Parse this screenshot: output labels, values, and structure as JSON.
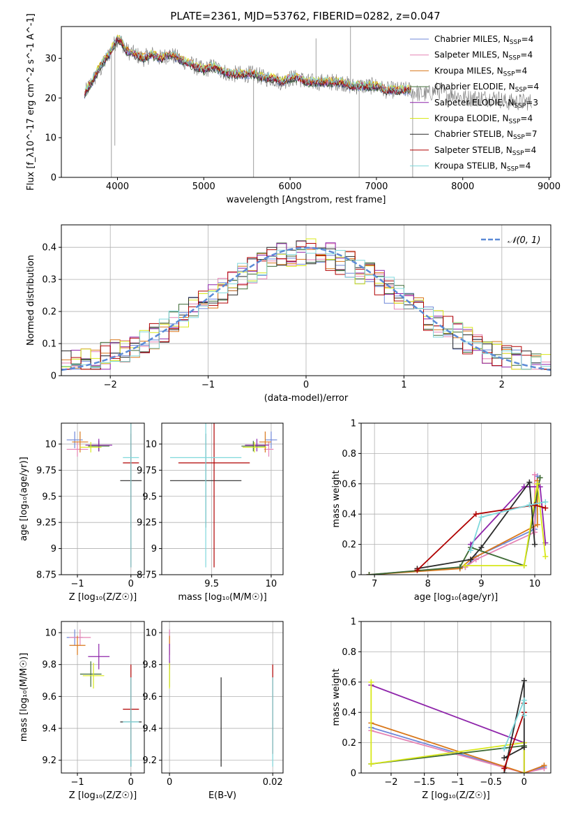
{
  "figure": {
    "title": "PLATE=2361, MJD=53762, FIBERID=0282, z=0.047"
  },
  "series_styles": [
    {
      "name": "Chabrier MILES",
      "color": "#6f87d8"
    },
    {
      "name": "Salpeter MILES",
      "color": "#e583b4"
    },
    {
      "name": "Kroupa MILES",
      "color": "#d9771a"
    },
    {
      "name": "Chabrier ELODIE",
      "color": "#3f6b36"
    },
    {
      "name": "Salpeter ELODIE",
      "color": "#8e24aa"
    },
    {
      "name": "Kroupa ELODIE",
      "color": "#d8e81a"
    },
    {
      "name": "Chabrier STELIB",
      "color": "#2a2a2a"
    },
    {
      "name": "Salpeter STELIB",
      "color": "#b00000"
    },
    {
      "name": "Kroupa STELIB",
      "color": "#7fd8dc"
    }
  ],
  "chart_data": [
    {
      "id": "spectrum",
      "type": "line",
      "xlabel": "wavelength [Angstrom, rest frame]",
      "ylabel": "Flux [f_λ10^-17 erg cm^-2 s^-1 A^-1]",
      "xlim": [
        3350,
        9020
      ],
      "ylim": [
        0,
        38
      ],
      "xticks": [
        4000,
        5000,
        6000,
        7000,
        8000,
        9000
      ],
      "yticks": [
        0,
        10,
        20,
        30
      ],
      "legend_position": "upper-right",
      "legend": [
        {
          "label": "Chabrier MILES, N",
          "sub": "SSP",
          "suffix": "=4"
        },
        {
          "label": "Salpeter MILES, N",
          "sub": "SSP",
          "suffix": "=4"
        },
        {
          "label": "Kroupa MILES, N",
          "sub": "SSP",
          "suffix": "=4"
        },
        {
          "label": "Chabrier ELODIE, N",
          "sub": "SSP",
          "suffix": "=4"
        },
        {
          "label": "Salpeter ELODIE, N",
          "sub": "SSP",
          "suffix": "=3"
        },
        {
          "label": "Kroupa ELODIE, N",
          "sub": "SSP",
          "suffix": "=4"
        },
        {
          "label": "Chabrier STELIB, N",
          "sub": "SSP",
          "suffix": "=7"
        },
        {
          "label": "Salpeter STELIB, N",
          "sub": "SSP",
          "suffix": "=4"
        },
        {
          "label": "Kroupa STELIB, N",
          "sub": "SSP",
          "suffix": "=4"
        }
      ],
      "data_spectrum": {
        "x": [
          3620,
          3700,
          3800,
          3900,
          3950,
          4000,
          4050,
          4100,
          4200,
          4300,
          4400,
          4500,
          4600,
          4700,
          4800,
          4900,
          5000,
          5100,
          5200,
          5300,
          5400,
          5500,
          5600,
          5700,
          5800,
          5900,
          6000,
          6100,
          6200,
          6300,
          6400,
          6500,
          6600,
          6700,
          6800,
          6900,
          7000,
          7100,
          7200,
          7300,
          7400,
          7500,
          7600,
          7700,
          7800,
          7900,
          8000,
          8100,
          8200,
          8300,
          8400,
          8500,
          8600,
          8700,
          8800
        ],
        "y": [
          21,
          24,
          27,
          31,
          33,
          35,
          34,
          32,
          31,
          30,
          31,
          30,
          31,
          30,
          29,
          28,
          27,
          28,
          27,
          26,
          26,
          26,
          26,
          25,
          25,
          24,
          25,
          25,
          24,
          24,
          24,
          24,
          24,
          23,
          23,
          23,
          23,
          22,
          22,
          22,
          22,
          21,
          21,
          22,
          21,
          21,
          20,
          20,
          20,
          20,
          20,
          19,
          19,
          19,
          19
        ]
      },
      "data_model": {
        "x": [
          3620,
          3700,
          3800,
          3900,
          3950,
          4000,
          4050,
          4100,
          4200,
          4300,
          4400,
          4500,
          4600,
          4700,
          4800,
          4900,
          5000,
          5100,
          5200,
          5300,
          5400,
          5500,
          5600,
          5700,
          5800,
          5900,
          6000,
          6100,
          6200,
          6300,
          6400,
          6500,
          6600,
          6700,
          6800,
          6900,
          7000,
          7100,
          7200,
          7300,
          7400
        ],
        "y": [
          21,
          24,
          28,
          31,
          33,
          35,
          34,
          32,
          31,
          30,
          31,
          30,
          31,
          30,
          29,
          28,
          27,
          28,
          27,
          26,
          26,
          26,
          26,
          25,
          25,
          24,
          25,
          25,
          24,
          24,
          24,
          24,
          24,
          23,
          23,
          23,
          23,
          22,
          22,
          22,
          22
        ]
      }
    },
    {
      "id": "residuals",
      "type": "histogram",
      "xlabel": "(data-model)/error",
      "ylabel": "Normed distribution",
      "xlim": [
        -2.5,
        2.5
      ],
      "ylim": [
        0,
        0.47
      ],
      "xticks": [
        -2,
        -1,
        0,
        1,
        2
      ],
      "yticks": [
        0.0,
        0.1,
        0.2,
        0.3,
        0.4
      ],
      "legend_position": "upper-right",
      "legend_label": "𝒩(0, 1)",
      "gaussian": {
        "mean": 0,
        "sigma": 1
      },
      "bin_width": 0.1
    },
    {
      "id": "Z-age",
      "type": "scatter",
      "xlabel": "Z [log₁₀(Z/Z☉)]",
      "ylabel": "age  [log₁₀(age/yr)]",
      "xlim": [
        -1.3,
        0.25
      ],
      "ylim": [
        8.75,
        10.2
      ],
      "xticks": [
        -1,
        0
      ],
      "yticks": [
        8.75,
        9.0,
        9.25,
        9.5,
        9.75,
        10.0
      ],
      "points": [
        {
          "s": 0,
          "x": -1.05,
          "y": 10.04,
          "xe": 0.15,
          "ye": 0.08
        },
        {
          "s": 1,
          "x": -1.0,
          "y": 9.95,
          "xe": 0.2,
          "ye": 0.07
        },
        {
          "s": 2,
          "x": -0.95,
          "y": 10.02,
          "xe": 0.15,
          "ye": 0.1
        },
        {
          "s": 3,
          "x": -0.6,
          "y": 9.98,
          "xe": 0.2,
          "ye": 0.05
        },
        {
          "s": 4,
          "x": -0.6,
          "y": 9.99,
          "xe": 0.25,
          "ye": 0.06
        },
        {
          "s": 5,
          "x": -0.75,
          "y": 9.97,
          "xe": 0.2,
          "ye": 0.05
        },
        {
          "s": 6,
          "x": 0.0,
          "y": 9.65,
          "xe": 0.2,
          "ye": 0.45
        },
        {
          "s": 7,
          "x": 0.0,
          "y": 9.82,
          "xe": 0.15,
          "ye": 1.0
        },
        {
          "s": 8,
          "x": 0.0,
          "y": 9.87,
          "xe": 0.15,
          "ye": 1.05
        }
      ]
    },
    {
      "id": "mass-age",
      "type": "scatter",
      "xlabel": "mass [log₁₀(M/M☉)]",
      "ylabel": "",
      "xlim": [
        9.08,
        10.1
      ],
      "ylim": [
        8.75,
        10.2
      ],
      "xticks": [
        9.5,
        10.0
      ],
      "yticks": [
        8.75,
        9.0,
        9.25,
        9.5,
        9.75,
        10.0
      ],
      "points": [
        {
          "s": 0,
          "x": 10.0,
          "y": 10.04,
          "xe": 0.05,
          "ye": 0.08
        },
        {
          "s": 1,
          "x": 9.98,
          "y": 9.95,
          "xe": 0.04,
          "ye": 0.07
        },
        {
          "s": 2,
          "x": 9.95,
          "y": 10.02,
          "xe": 0.05,
          "ye": 0.1
        },
        {
          "s": 3,
          "x": 9.85,
          "y": 9.98,
          "xe": 0.1,
          "ye": 0.05
        },
        {
          "s": 4,
          "x": 9.88,
          "y": 9.99,
          "xe": 0.1,
          "ye": 0.06
        },
        {
          "s": 5,
          "x": 9.86,
          "y": 9.97,
          "xe": 0.1,
          "ye": 0.05
        },
        {
          "s": 6,
          "x": 9.45,
          "y": 9.65,
          "xe": 0.3,
          "ye": 0.45
        },
        {
          "s": 7,
          "x": 9.52,
          "y": 9.82,
          "xe": 0.3,
          "ye": 1.0
        },
        {
          "s": 8,
          "x": 9.45,
          "y": 9.87,
          "xe": 0.3,
          "ye": 1.05
        }
      ]
    },
    {
      "id": "age-weight",
      "type": "line",
      "xlabel": "age  [log₁₀(age/yr)]",
      "ylabel": "mass weight",
      "xlim": [
        6.75,
        10.3
      ],
      "ylim": [
        0,
        1.0
      ],
      "xticks": [
        7,
        8,
        9,
        10
      ],
      "yticks": [
        0.0,
        0.2,
        0.4,
        0.6,
        0.8,
        1.0
      ],
      "series": [
        {
          "s": 0,
          "x": [
            6.9,
            8.7,
            8.9,
            10.0,
            10.05
          ],
          "y": [
            0.0,
            0.05,
            0.12,
            0.3,
            0.65
          ]
        },
        {
          "s": 1,
          "x": [
            6.9,
            8.7,
            8.9,
            10.0,
            10.0
          ],
          "y": [
            0.0,
            0.05,
            0.1,
            0.28,
            0.66
          ]
        },
        {
          "s": 2,
          "x": [
            6.9,
            8.6,
            8.8,
            10.05,
            10.05
          ],
          "y": [
            0.0,
            0.04,
            0.1,
            0.33,
            0.62
          ]
        },
        {
          "s": 3,
          "x": [
            6.9,
            8.6,
            8.8,
            9.8,
            10.1
          ],
          "y": [
            0.0,
            0.05,
            0.18,
            0.06,
            0.64
          ]
        },
        {
          "s": 4,
          "x": [
            8.8,
            9.8,
            10.1,
            10.2
          ],
          "y": [
            0.2,
            0.58,
            0.58,
            0.21
          ]
        },
        {
          "s": 5,
          "x": [
            8.7,
            9.8,
            10.05,
            10.2
          ],
          "y": [
            0.06,
            0.06,
            0.6,
            0.12
          ]
        },
        {
          "s": 6,
          "x": [
            7.8,
            8.8,
            9.0,
            9.9,
            10.0
          ],
          "y": [
            0.04,
            0.1,
            0.18,
            0.61,
            0.2
          ]
        },
        {
          "s": 7,
          "x": [
            7.8,
            8.9,
            10.0,
            10.2
          ],
          "y": [
            0.03,
            0.4,
            0.46,
            0.44
          ]
        },
        {
          "s": 8,
          "x": [
            8.8,
            9.0,
            9.9,
            10.2
          ],
          "y": [
            0.16,
            0.38,
            0.46,
            0.48
          ]
        }
      ]
    },
    {
      "id": "Z-mass",
      "type": "scatter",
      "xlabel": "Z [log₁₀(Z/Z☉)]",
      "ylabel": "mass [log₁₀(M/M☉)]",
      "xlim": [
        -1.3,
        0.25
      ],
      "ylim": [
        9.12,
        10.07
      ],
      "xticks": [
        -1,
        0
      ],
      "yticks": [
        9.2,
        9.4,
        9.6,
        9.8,
        10.0
      ],
      "points": [
        {
          "s": 0,
          "x": -1.05,
          "y": 9.97,
          "xe": 0.15,
          "ye": 0.05
        },
        {
          "s": 1,
          "x": -0.95,
          "y": 9.97,
          "xe": 0.2,
          "ye": 0.05
        },
        {
          "s": 2,
          "x": -1.0,
          "y": 9.92,
          "xe": 0.15,
          "ye": 0.06
        },
        {
          "s": 3,
          "x": -0.75,
          "y": 9.74,
          "xe": 0.2,
          "ye": 0.08
        },
        {
          "s": 4,
          "x": -0.6,
          "y": 9.85,
          "xe": 0.2,
          "ye": 0.08
        },
        {
          "s": 5,
          "x": -0.7,
          "y": 9.73,
          "xe": 0.2,
          "ye": 0.08
        },
        {
          "s": 6,
          "x": 0.0,
          "y": 9.44,
          "xe": 0.2,
          "ye": 0.28
        },
        {
          "s": 7,
          "x": 0.0,
          "y": 9.52,
          "xe": 0.15,
          "ye": 0.28
        },
        {
          "s": 8,
          "x": 0.0,
          "y": 9.44,
          "xe": 0.15,
          "ye": 0.28
        }
      ]
    },
    {
      "id": "ebv-mass",
      "type": "scatter",
      "xlabel": "E(B-V)",
      "ylabel": "",
      "xlim": [
        -0.0015,
        0.022
      ],
      "ylim": [
        9.12,
        10.07
      ],
      "xticks": [
        0.0,
        0.02
      ],
      "yticks": [
        9.2,
        9.4,
        9.6,
        9.8,
        10.0
      ],
      "points": [
        {
          "s": 0,
          "x": 0.0,
          "y": 9.97,
          "xe": 0,
          "ye": 0.05
        },
        {
          "s": 1,
          "x": 0.0,
          "y": 9.97,
          "xe": 0,
          "ye": 0.05
        },
        {
          "s": 2,
          "x": 0.0,
          "y": 9.92,
          "xe": 0,
          "ye": 0.06
        },
        {
          "s": 3,
          "x": 0.0,
          "y": 9.74,
          "xe": 0,
          "ye": 0.08
        },
        {
          "s": 4,
          "x": 0.0,
          "y": 9.85,
          "xe": 0,
          "ye": 0.08
        },
        {
          "s": 5,
          "x": 0.0,
          "y": 9.73,
          "xe": 0,
          "ye": 0.08
        },
        {
          "s": 6,
          "x": 0.01,
          "y": 9.44,
          "xe": 0,
          "ye": 0.28
        },
        {
          "s": 7,
          "x": 0.02,
          "y": 9.52,
          "xe": 0,
          "ye": 0.28
        },
        {
          "s": 8,
          "x": 0.02,
          "y": 9.44,
          "xe": 0,
          "ye": 0.28
        }
      ]
    },
    {
      "id": "Z-weight",
      "type": "line",
      "xlabel": "Z [log₁₀(Z/Z☉)]",
      "ylabel": "mass weight",
      "xlim": [
        -2.45,
        0.4
      ],
      "ylim": [
        0,
        1.0
      ],
      "xticks": [
        -2.0,
        -1.5,
        -1.0,
        -0.5,
        0.0
      ],
      "yticks": [
        0.0,
        0.2,
        0.4,
        0.6,
        0.8,
        1.0
      ],
      "series": [
        {
          "s": 0,
          "x": [
            -2.3,
            0.0,
            0.3
          ],
          "y": [
            0.3,
            0.0,
            0.04
          ]
        },
        {
          "s": 1,
          "x": [
            -2.3,
            0.0,
            0.3
          ],
          "y": [
            0.28,
            0.0,
            0.03
          ]
        },
        {
          "s": 2,
          "x": [
            -2.3,
            0.0,
            0.3
          ],
          "y": [
            0.33,
            0.0,
            0.05
          ]
        },
        {
          "s": 3,
          "x": [
            -2.3,
            0.0,
            0.0
          ],
          "y": [
            0.06,
            0.18,
            0.0
          ]
        },
        {
          "s": 4,
          "x": [
            -2.3,
            0.0,
            0.0
          ],
          "y": [
            0.58,
            0.2,
            0.0
          ]
        },
        {
          "s": 5,
          "x": [
            -2.3,
            -2.3,
            0.0,
            0.0
          ],
          "y": [
            0.6,
            0.06,
            0.2,
            0.0
          ]
        },
        {
          "s": 6,
          "x": [
            -0.3,
            0.0,
            0.0,
            -0.3
          ],
          "y": [
            0.0,
            0.61,
            0.17,
            0.1
          ]
        },
        {
          "s": 7,
          "x": [
            -0.3,
            0.0,
            0.0
          ],
          "y": [
            0.03,
            0.4,
            0.46
          ]
        },
        {
          "s": 8,
          "x": [
            -0.3,
            0.0,
            0.0
          ],
          "y": [
            0.16,
            0.48,
            0.38
          ]
        }
      ]
    }
  ]
}
